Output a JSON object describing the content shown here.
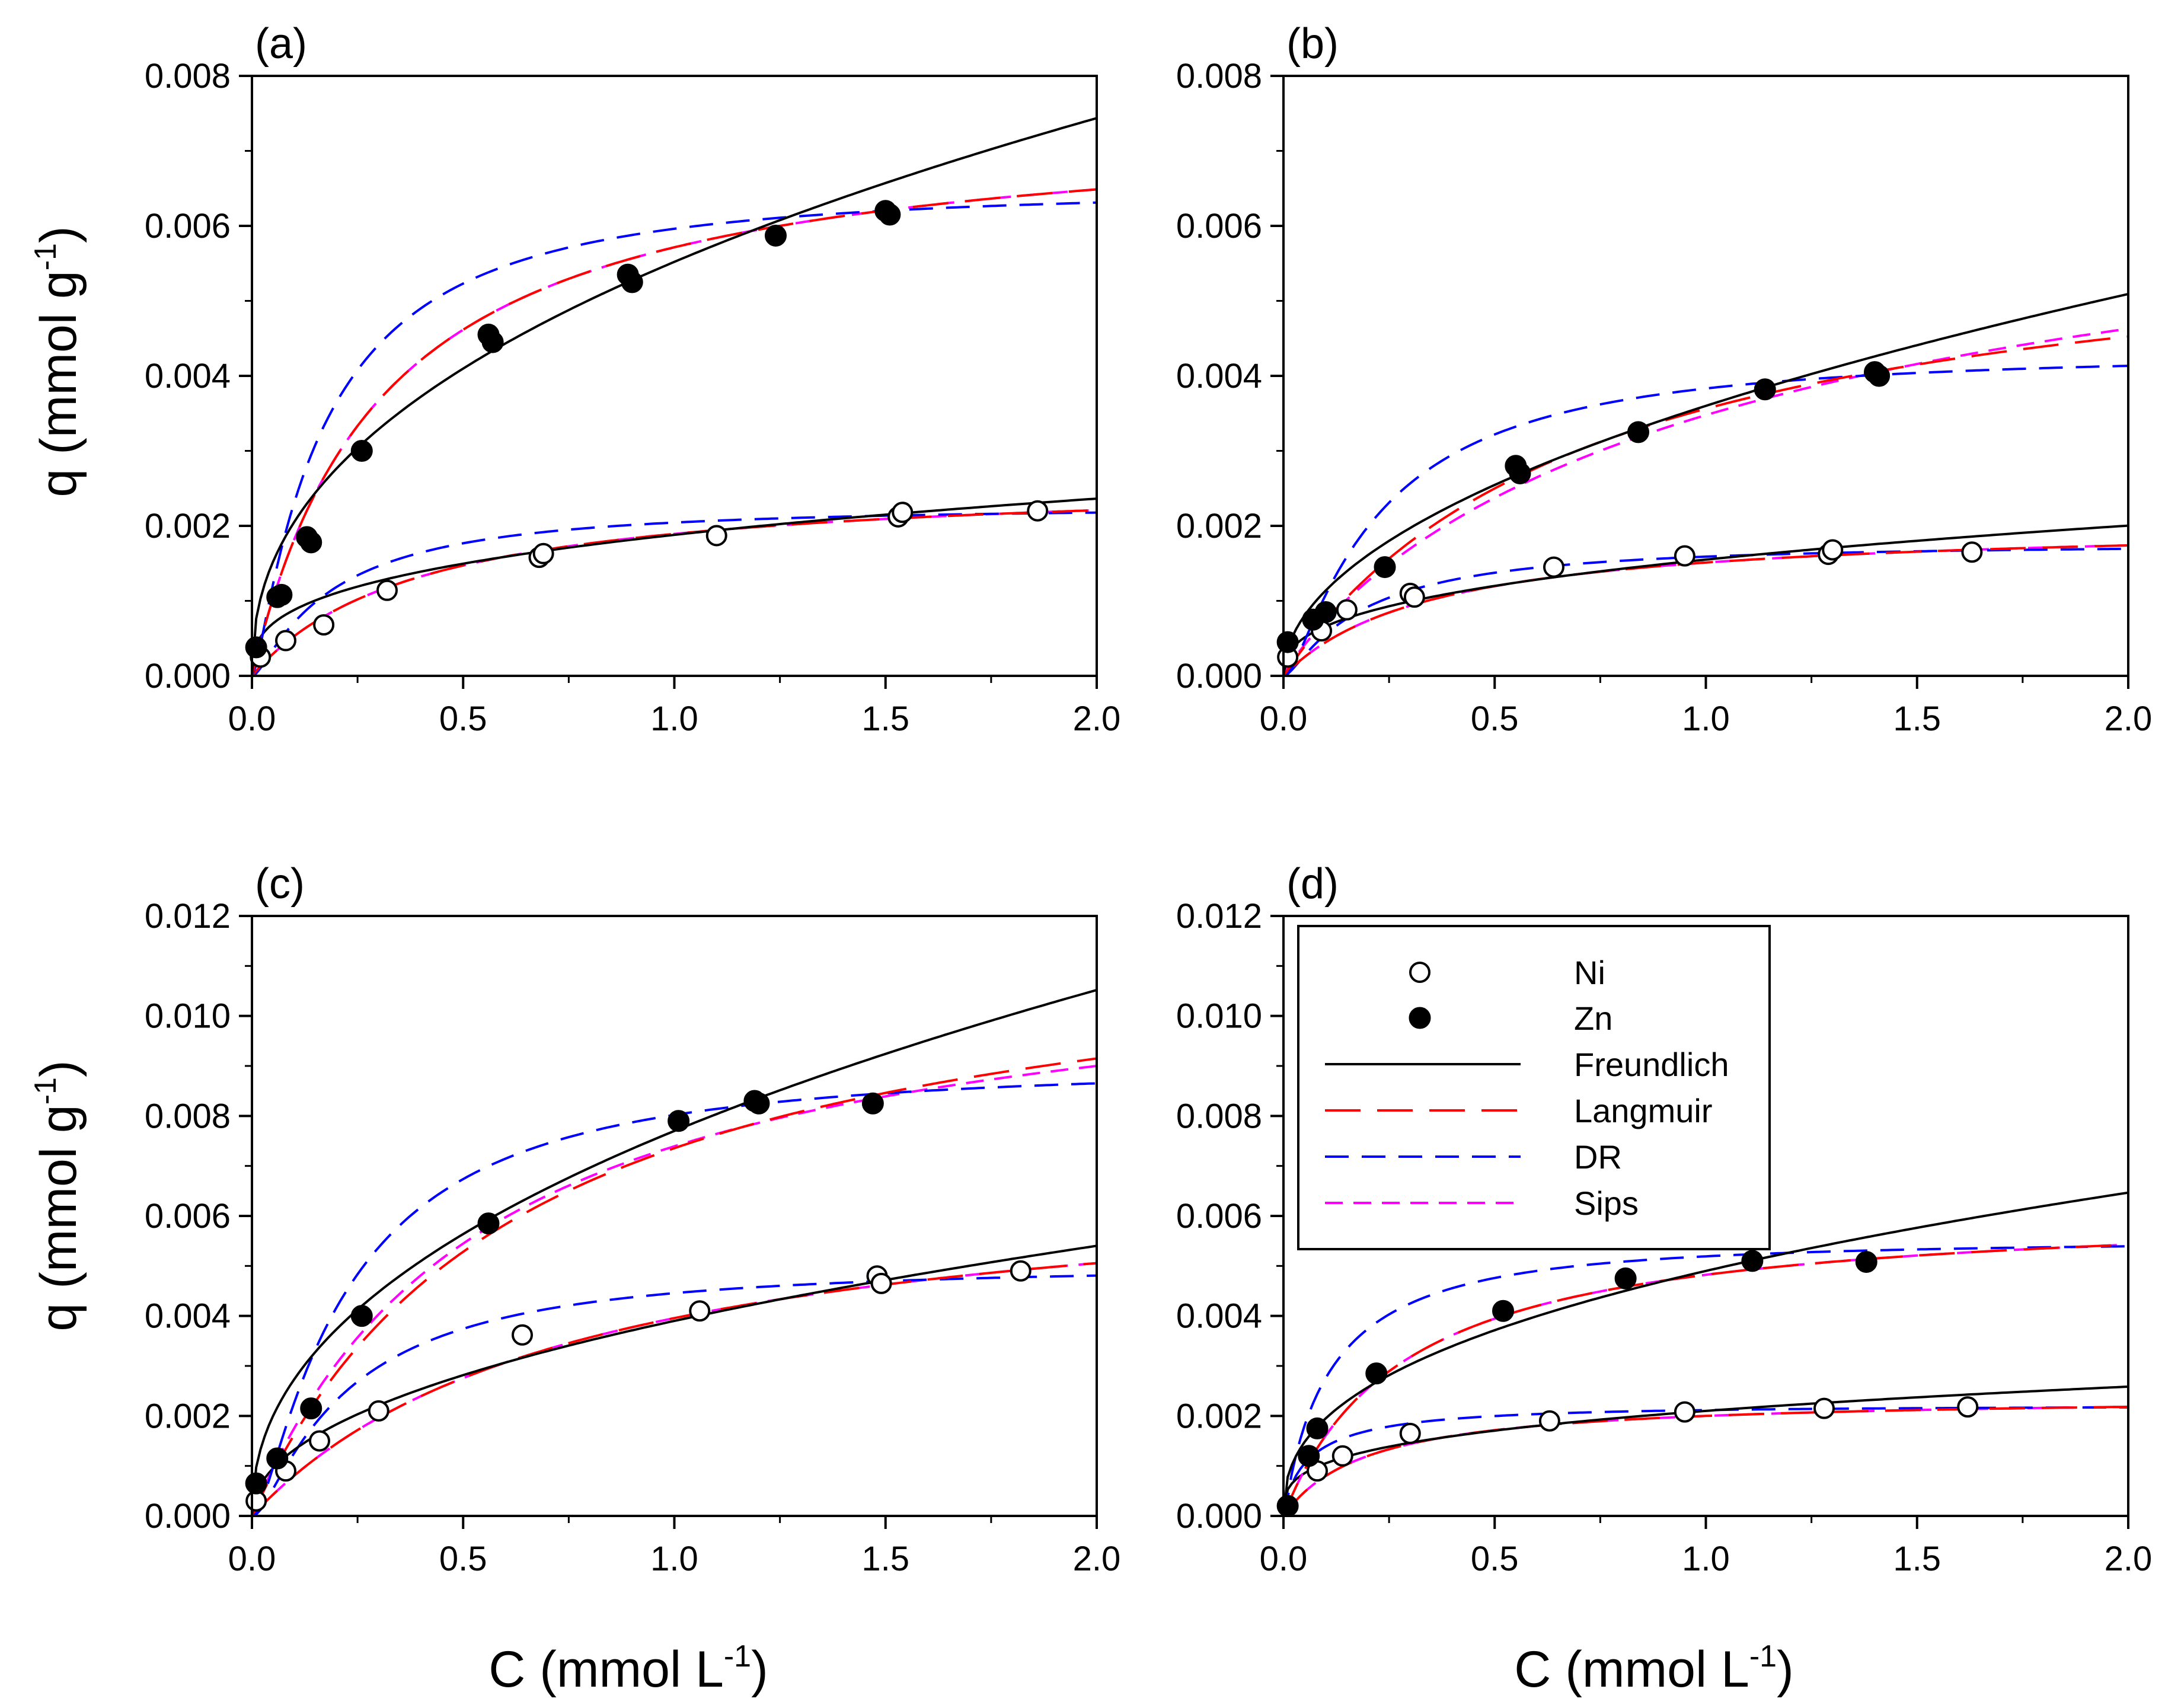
{
  "chart_data": [
    {
      "type": "scatter",
      "panel_label": "(a)",
      "xlim": [
        0,
        2.0
      ],
      "ylim": [
        0,
        0.008
      ],
      "x_ticks": [
        "0.0",
        "0.5",
        "1.0",
        "1.5",
        "2.0"
      ],
      "y_ticks": [
        "0.000",
        "0.002",
        "0.004",
        "0.006",
        "0.008"
      ],
      "ylabel": "q (mmol g",
      "ylabel_sup": "-1",
      "series": [
        {
          "name": "Ni",
          "marker": "open",
          "x": [
            0.02,
            0.08,
            0.17,
            0.32,
            0.68,
            0.69,
            1.1,
            1.53,
            1.54,
            1.86
          ],
          "y": [
            0.00025,
            0.00047,
            0.00068,
            0.00114,
            0.00158,
            0.00163,
            0.00187,
            0.00212,
            0.00218,
            0.0022
          ]
        },
        {
          "name": "Zn",
          "marker": "filled",
          "x": [
            0.01,
            0.06,
            0.07,
            0.13,
            0.14,
            0.26,
            0.56,
            0.57,
            0.89,
            0.9,
            1.24,
            1.5,
            1.51
          ],
          "y": [
            0.00038,
            0.00105,
            0.00108,
            0.00185,
            0.00178,
            0.003,
            0.00455,
            0.00445,
            0.00535,
            0.00525,
            0.00587,
            0.0062,
            0.00615
          ]
        }
      ],
      "fits": {
        "Zn": {
          "freundlich": {
            "K": 0.00552,
            "n": 0.43
          },
          "langmuir": {
            "qm": 0.0075,
            "KL": 3.2
          },
          "dr": {
            "qm": 0.0065,
            "beta": 0.045
          },
          "sips": {
            "qm": 0.0075,
            "KL": 3.2,
            "n": 1.0
          }
        },
        "Ni": {
          "freundlich": {
            "K": 0.00188,
            "n": 0.33
          },
          "langmuir": {
            "qm": 0.00265,
            "KL": 2.5
          },
          "dr": {
            "qm": 0.00225,
            "beta": 0.05
          },
          "sips": {
            "qm": 0.00265,
            "KL": 2.5,
            "n": 1.0
          }
        }
      }
    },
    {
      "type": "scatter",
      "panel_label": "(b)",
      "xlim": [
        0,
        2.0
      ],
      "ylim": [
        0,
        0.008
      ],
      "x_ticks": [
        "0.0",
        "0.5",
        "1.0",
        "1.5",
        "2.0"
      ],
      "y_ticks": [
        "0.000",
        "0.002",
        "0.004",
        "0.006",
        "0.008"
      ],
      "ylabel": "",
      "ylabel_sup": "",
      "series": [
        {
          "name": "Ni",
          "marker": "open",
          "x": [
            0.01,
            0.09,
            0.15,
            0.3,
            0.31,
            0.64,
            0.95,
            1.29,
            1.3,
            1.63
          ],
          "y": [
            0.00025,
            0.0006,
            0.00088,
            0.0011,
            0.00105,
            0.00145,
            0.0016,
            0.00162,
            0.00168,
            0.00165
          ]
        },
        {
          "name": "Zn",
          "marker": "filled",
          "x": [
            0.01,
            0.07,
            0.1,
            0.24,
            0.55,
            0.56,
            0.84,
            1.14,
            1.4,
            1.41
          ],
          "y": [
            0.00045,
            0.00075,
            0.00085,
            0.00145,
            0.0028,
            0.0027,
            0.00325,
            0.00382,
            0.00405,
            0.004
          ]
        }
      ],
      "fits": {
        "Zn": {
          "freundlich": {
            "K": 0.0036,
            "n": 0.5
          },
          "langmuir": {
            "qm": 0.0062,
            "KL": 1.35
          },
          "dr": {
            "qm": 0.0043,
            "beta": 0.06
          },
          "sips": {
            "qm": 0.0075,
            "KL": 0.85,
            "n": 0.9
          }
        },
        "Ni": {
          "freundlich": {
            "K": 0.00155,
            "n": 0.37
          },
          "langmuir": {
            "qm": 0.00205,
            "KL": 2.8
          },
          "dr": {
            "qm": 0.00175,
            "beta": 0.05
          },
          "sips": {
            "qm": 0.00205,
            "KL": 2.8,
            "n": 1.0
          }
        }
      }
    },
    {
      "type": "scatter",
      "panel_label": "(c)",
      "xlim": [
        0,
        2.0
      ],
      "ylim": [
        0,
        0.012
      ],
      "x_ticks": [
        "0.0",
        "0.5",
        "1.0",
        "1.5",
        "2.0"
      ],
      "y_ticks": [
        "0.000",
        "0.002",
        "0.004",
        "0.006",
        "0.008",
        "0.010",
        "0.012"
      ],
      "ylabel": "q (mmol g",
      "ylabel_sup": "-1",
      "series": [
        {
          "name": "Ni",
          "marker": "open",
          "x": [
            0.01,
            0.08,
            0.16,
            0.3,
            0.64,
            1.06,
            1.48,
            1.49,
            1.82
          ],
          "y": [
            0.0003,
            0.0009,
            0.0015,
            0.0021,
            0.00362,
            0.0041,
            0.0048,
            0.00465,
            0.0049
          ]
        },
        {
          "name": "Zn",
          "marker": "filled",
          "x": [
            0.01,
            0.06,
            0.14,
            0.26,
            0.56,
            1.01,
            1.19,
            1.2,
            1.47
          ],
          "y": [
            0.00065,
            0.00115,
            0.00215,
            0.004,
            0.00585,
            0.0079,
            0.0083,
            0.00825,
            0.00825
          ]
        }
      ],
      "fits": {
        "Zn": {
          "freundlich": {
            "K": 0.0077,
            "n": 0.45
          },
          "langmuir": {
            "qm": 0.0121,
            "KL": 1.55
          },
          "dr": {
            "qm": 0.009,
            "beta": 0.06
          },
          "sips": {
            "qm": 0.0115,
            "KL": 1.8,
            "n": 1.0
          }
        },
        "Ni": {
          "freundlich": {
            "K": 0.0039,
            "n": 0.47
          },
          "langmuir": {
            "qm": 0.007,
            "KL": 1.3
          },
          "dr": {
            "qm": 0.005,
            "beta": 0.06
          },
          "sips": {
            "qm": 0.007,
            "KL": 1.3,
            "n": 1.0
          }
        }
      }
    },
    {
      "type": "scatter",
      "panel_label": "(d)",
      "xlim": [
        0,
        2.0
      ],
      "ylim": [
        0,
        0.012
      ],
      "x_ticks": [
        "0.0",
        "0.5",
        "1.0",
        "1.5",
        "2.0"
      ],
      "y_ticks": [
        "0.000",
        "0.002",
        "0.004",
        "0.006",
        "0.008",
        "0.010",
        "0.012"
      ],
      "ylabel": "",
      "ylabel_sup": "",
      "series": [
        {
          "name": "Ni",
          "marker": "open",
          "x": [
            0.01,
            0.08,
            0.14,
            0.3,
            0.63,
            0.95,
            1.28,
            1.62
          ],
          "y": [
            0.0002,
            0.0009,
            0.0012,
            0.00165,
            0.0019,
            0.00208,
            0.00215,
            0.00218
          ]
        },
        {
          "name": "Zn",
          "marker": "filled",
          "x": [
            0.01,
            0.06,
            0.08,
            0.22,
            0.52,
            0.81,
            1.11,
            1.38
          ],
          "y": [
            0.0002,
            0.0012,
            0.00175,
            0.00285,
            0.0041,
            0.00475,
            0.0051,
            0.00508
          ]
        }
      ],
      "fits": {
        "Zn": {
          "freundlich": {
            "K": 0.0049,
            "n": 0.4
          },
          "langmuir": {
            "qm": 0.0062,
            "KL": 3.5
          },
          "dr": {
            "qm": 0.0055,
            "beta": 0.03
          },
          "sips": {
            "qm": 0.0062,
            "KL": 3.5,
            "n": 1.0
          }
        },
        "Ni": {
          "freundlich": {
            "K": 0.0021,
            "n": 0.3
          },
          "langmuir": {
            "qm": 0.0024,
            "KL": 5.0
          },
          "dr": {
            "qm": 0.0022,
            "beta": 0.02
          },
          "sips": {
            "qm": 0.0024,
            "KL": 5.0,
            "n": 1.0
          }
        }
      }
    }
  ],
  "x_axis_title": "C (mmol L",
  "x_axis_title_sup": "-1",
  "x_axis_title_close": ")",
  "y_axis_title_close": ")",
  "legend": {
    "entries": [
      {
        "key": "ni",
        "label": "Ni",
        "kind": "marker-open"
      },
      {
        "key": "zn",
        "label": "Zn",
        "kind": "marker-filled"
      },
      {
        "key": "freundlich",
        "label": "Freundlich",
        "kind": "line"
      },
      {
        "key": "langmuir",
        "label": "Langmuir",
        "kind": "line"
      },
      {
        "key": "dr",
        "label": "DR",
        "kind": "line"
      },
      {
        "key": "sips",
        "label": "Sips",
        "kind": "line"
      }
    ]
  },
  "colors": {
    "freundlich": "#000000",
    "langmuir": "#ff0000",
    "dr": "#0000ff",
    "sips": "#ff00ff",
    "marker_stroke": "#000000"
  }
}
